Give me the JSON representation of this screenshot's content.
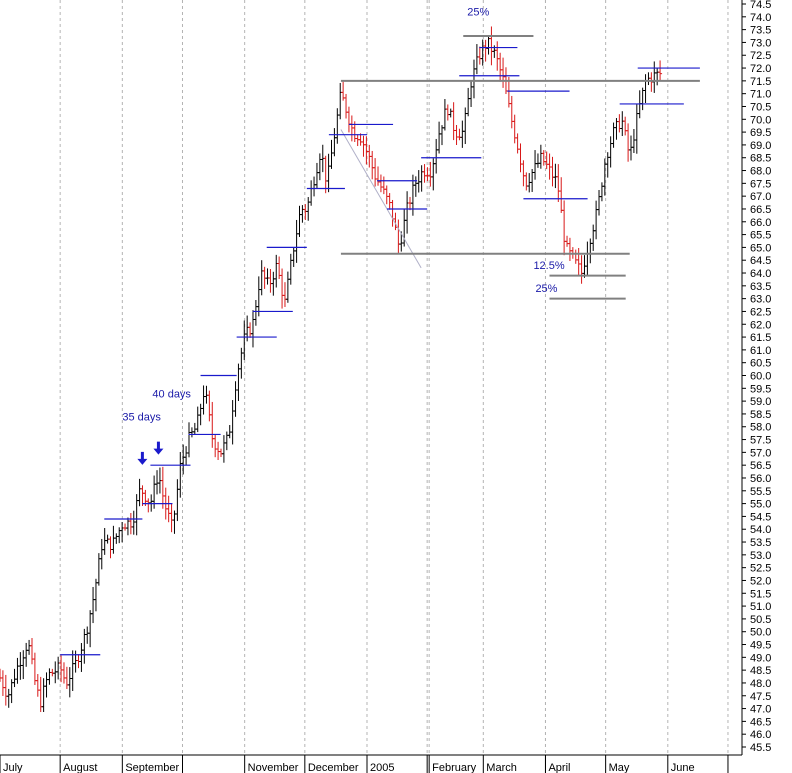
{
  "chart_data": {
    "type": "bar",
    "subtype": "ohlc",
    "title": "",
    "xlabel": "",
    "ylabel": "",
    "ylim": [
      45.5,
      74.5
    ],
    "y_ticks": [
      74.5,
      74.0,
      73.5,
      73.0,
      72.5,
      72.0,
      71.5,
      71.0,
      70.5,
      70.0,
      69.5,
      69.0,
      68.5,
      68.0,
      67.5,
      67.0,
      66.5,
      66.0,
      65.5,
      65.0,
      64.5,
      64.0,
      63.5,
      63.0,
      62.5,
      62.0,
      61.5,
      61.0,
      60.5,
      60.0,
      59.5,
      59.0,
      58.5,
      58.0,
      57.5,
      57.0,
      56.5,
      56.0,
      55.5,
      55.0,
      54.5,
      54.0,
      53.5,
      53.0,
      52.5,
      52.0,
      51.5,
      51.0,
      50.5,
      50.0,
      49.5,
      49.0,
      48.5,
      48.0,
      47.5,
      47.0,
      46.5,
      46.0,
      45.5
    ],
    "x_labels": [
      {
        "label": "July",
        "x": 0
      },
      {
        "label": "August",
        "x": 30
      },
      {
        "label": "September",
        "x": 61
      },
      {
        "label": "",
        "x": 91
      },
      {
        "label": "November",
        "x": 122
      },
      {
        "label": "December",
        "x": 152
      },
      {
        "label": "2005",
        "x": 183
      },
      {
        "label": "",
        "x": 213
      },
      {
        "label": "February",
        "x": 214
      },
      {
        "label": "March",
        "x": 241
      },
      {
        "label": "",
        "x": 272
      },
      {
        "label": "April",
        "x": 272
      },
      {
        "label": "May",
        "x": 302
      },
      {
        "label": "June",
        "x": 333
      },
      {
        "label": "",
        "x": 363
      }
    ],
    "x_range": [
      0,
      369
    ],
    "grid": "vertical-dashed",
    "key_points": [
      {
        "x": 0,
        "y": 48.2
      },
      {
        "x": 4,
        "y": 47.5
      },
      {
        "x": 9,
        "y": 48.7
      },
      {
        "x": 14,
        "y": 49.6
      },
      {
        "x": 17,
        "y": 48.2
      },
      {
        "x": 20,
        "y": 47.2
      },
      {
        "x": 24,
        "y": 48.3
      },
      {
        "x": 30,
        "y": 48.6
      },
      {
        "x": 33,
        "y": 48.0
      },
      {
        "x": 38,
        "y": 48.8
      },
      {
        "x": 43,
        "y": 50.0
      },
      {
        "x": 47,
        "y": 51.5
      },
      {
        "x": 51,
        "y": 53.5
      },
      {
        "x": 56,
        "y": 53.4
      },
      {
        "x": 61,
        "y": 54.2
      },
      {
        "x": 66,
        "y": 54.3
      },
      {
        "x": 70,
        "y": 55.6
      },
      {
        "x": 75,
        "y": 55.0
      },
      {
        "x": 79,
        "y": 56.2
      },
      {
        "x": 82,
        "y": 55.0
      },
      {
        "x": 86,
        "y": 54.0
      },
      {
        "x": 90,
        "y": 56.5
      },
      {
        "x": 94,
        "y": 57.5
      },
      {
        "x": 98,
        "y": 58.0
      },
      {
        "x": 102,
        "y": 59.5
      },
      {
        "x": 106,
        "y": 57.5
      },
      {
        "x": 110,
        "y": 57.0
      },
      {
        "x": 114,
        "y": 57.6
      },
      {
        "x": 118,
        "y": 60.0
      },
      {
        "x": 122,
        "y": 61.5
      },
      {
        "x": 126,
        "y": 62.0
      },
      {
        "x": 130,
        "y": 64.0
      },
      {
        "x": 134,
        "y": 63.5
      },
      {
        "x": 138,
        "y": 64.3
      },
      {
        "x": 142,
        "y": 62.8
      },
      {
        "x": 146,
        "y": 64.8
      },
      {
        "x": 150,
        "y": 66.5
      },
      {
        "x": 153,
        "y": 66.5
      },
      {
        "x": 156,
        "y": 67.5
      },
      {
        "x": 160,
        "y": 68.8
      },
      {
        "x": 163,
        "y": 67.5
      },
      {
        "x": 166,
        "y": 69.0
      },
      {
        "x": 170,
        "y": 71.0
      },
      {
        "x": 173,
        "y": 70.3
      },
      {
        "x": 176,
        "y": 69.5
      },
      {
        "x": 180,
        "y": 69.3
      },
      {
        "x": 184,
        "y": 68.5
      },
      {
        "x": 187,
        "y": 67.8
      },
      {
        "x": 191,
        "y": 67.2
      },
      {
        "x": 195,
        "y": 66.5
      },
      {
        "x": 199,
        "y": 65.0
      },
      {
        "x": 203,
        "y": 66.5
      },
      {
        "x": 207,
        "y": 67.5
      },
      {
        "x": 211,
        "y": 68.0
      },
      {
        "x": 215,
        "y": 68.0
      },
      {
        "x": 219,
        "y": 69.5
      },
      {
        "x": 223,
        "y": 70.5
      },
      {
        "x": 227,
        "y": 69.5
      },
      {
        "x": 231,
        "y": 69.5
      },
      {
        "x": 235,
        "y": 71.5
      },
      {
        "x": 239,
        "y": 72.5
      },
      {
        "x": 243,
        "y": 73.0
      },
      {
        "x": 247,
        "y": 72.5
      },
      {
        "x": 251,
        "y": 71.5
      },
      {
        "x": 255,
        "y": 70.0
      },
      {
        "x": 258,
        "y": 69.0
      },
      {
        "x": 262,
        "y": 67.5
      },
      {
        "x": 266,
        "y": 68.0
      },
      {
        "x": 270,
        "y": 68.5
      },
      {
        "x": 274,
        "y": 68.0
      },
      {
        "x": 278,
        "y": 67.5
      },
      {
        "x": 282,
        "y": 65.0
      },
      {
        "x": 286,
        "y": 64.5
      },
      {
        "x": 290,
        "y": 64.0
      },
      {
        "x": 294,
        "y": 65.3
      },
      {
        "x": 298,
        "y": 66.5
      },
      {
        "x": 302,
        "y": 68.5
      },
      {
        "x": 306,
        "y": 69.5
      },
      {
        "x": 310,
        "y": 70.0
      },
      {
        "x": 314,
        "y": 68.5
      },
      {
        "x": 318,
        "y": 70.2
      },
      {
        "x": 322,
        "y": 71.5
      },
      {
        "x": 326,
        "y": 71.7
      },
      {
        "x": 330,
        "y": 71.8
      }
    ],
    "reference_lines_gray": [
      {
        "x1": 170,
        "x2": 349,
        "y": 71.5
      },
      {
        "x1": 170,
        "x2": 314,
        "y": 64.75
      },
      {
        "x1": 231,
        "x2": 266,
        "y": 73.25
      },
      {
        "x1": 274,
        "x2": 312,
        "y": 63.9
      },
      {
        "x1": 274,
        "x2": 312,
        "y": 63.0
      }
    ],
    "reference_lines_blue": [
      {
        "x1": 30,
        "x2": 50,
        "y": 49.1
      },
      {
        "x1": 52,
        "x2": 71,
        "y": 54.4
      },
      {
        "x1": 71,
        "x2": 86,
        "y": 55.0
      },
      {
        "x1": 75,
        "x2": 95,
        "y": 56.5
      },
      {
        "x1": 94,
        "x2": 110,
        "y": 57.7
      },
      {
        "x1": 100,
        "x2": 118,
        "y": 60.0
      },
      {
        "x1": 118,
        "x2": 138,
        "y": 61.5
      },
      {
        "x1": 126,
        "x2": 146,
        "y": 62.5
      },
      {
        "x1": 133,
        "x2": 153,
        "y": 65.0
      },
      {
        "x1": 153,
        "x2": 172,
        "y": 67.3
      },
      {
        "x1": 164,
        "x2": 183,
        "y": 69.4
      },
      {
        "x1": 174,
        "x2": 196,
        "y": 69.8
      },
      {
        "x1": 188,
        "x2": 208,
        "y": 67.6
      },
      {
        "x1": 193,
        "x2": 213,
        "y": 66.5
      },
      {
        "x1": 210,
        "x2": 240,
        "y": 68.5
      },
      {
        "x1": 229,
        "x2": 259,
        "y": 71.7
      },
      {
        "x1": 239,
        "x2": 258,
        "y": 72.8
      },
      {
        "x1": 253,
        "x2": 284,
        "y": 71.1
      },
      {
        "x1": 261,
        "x2": 293,
        "y": 66.9
      },
      {
        "x1": 309,
        "x2": 341,
        "y": 70.6
      },
      {
        "x1": 318,
        "x2": 349,
        "y": 72.0
      }
    ],
    "trend_line": {
      "x1": 170,
      "y1": 69.6,
      "x2": 210,
      "y2": 64.2
    },
    "annotations": [
      {
        "text": "40 days",
        "x": 76,
        "y": 59.15
      },
      {
        "text": "35 days",
        "x": 61,
        "y": 58.25
      },
      {
        "text": "25%",
        "x": 233,
        "y": 74.05
      },
      {
        "text": "12.5%",
        "x": 266,
        "y": 64.15
      },
      {
        "text": "25%",
        "x": 267,
        "y": 63.25
      }
    ],
    "arrows": [
      {
        "x": 71,
        "y": 56.55
      },
      {
        "x": 79,
        "y": 56.95
      }
    ]
  }
}
